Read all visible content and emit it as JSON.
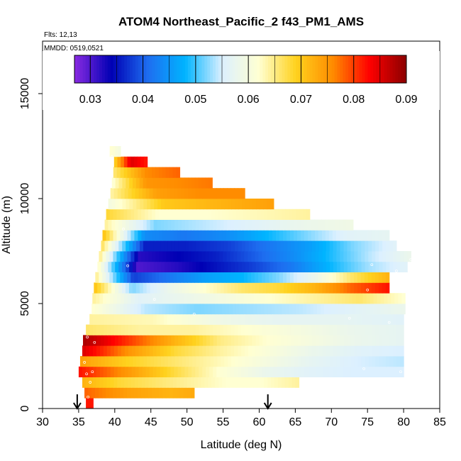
{
  "chart_data": {
    "type": "heatmap",
    "title": "ATOM4 Northeast_Pacific_2 f43_PM1_AMS",
    "flights_note": "Flts: 12,13",
    "date_note": "MMDD: 0519,0521",
    "xlabel": "Latitude (deg N)",
    "ylabel": "Altitude (m)",
    "xlim": [
      30,
      85
    ],
    "ylim": [
      0,
      17500
    ],
    "xticks": [
      "30",
      "35",
      "40",
      "45",
      "50",
      "55",
      "60",
      "65",
      "70",
      "75",
      "80",
      "85"
    ],
    "yticks": [
      "0",
      "5000",
      "10000",
      "15000"
    ],
    "colorbar": {
      "min": 0.027,
      "max": 0.09,
      "ticks": [
        "0.03",
        "0.04",
        "0.05",
        "0.06",
        "0.07",
        "0.08",
        "0.09"
      ],
      "colors": [
        "#8a2be2",
        "#0000b4",
        "#1e6ef0",
        "#00b4ff",
        "#dcf0ff",
        "#ffffd2",
        "#ffd21e",
        "#ff8c00",
        "#ff0000",
        "#8b0000"
      ]
    },
    "layers": [
      {
        "alt": 250,
        "lat_start": 36.0,
        "lat_end": 37.0,
        "values": [
          0.082,
          0.082
        ]
      },
      {
        "alt": 750,
        "lat_start": 35.8,
        "lat_end": 51.0,
        "values": [
          0.078,
          0.076,
          0.074,
          0.073,
          0.072,
          0.073
        ]
      },
      {
        "alt": 1250,
        "lat_start": 35.5,
        "lat_end": 65.5,
        "values": [
          0.072,
          0.068,
          0.066,
          0.064,
          0.062,
          0.062,
          0.064
        ]
      },
      {
        "alt": 1750,
        "lat_start": 35.0,
        "lat_end": 80.0,
        "values": [
          0.082,
          0.075,
          0.068,
          0.062,
          0.058,
          0.056,
          0.055,
          0.055
        ]
      },
      {
        "alt": 2250,
        "lat_start": 35.2,
        "lat_end": 80.0,
        "values": [
          0.074,
          0.069,
          0.066,
          0.063,
          0.06,
          0.057,
          0.055,
          0.054
        ]
      },
      {
        "alt": 2750,
        "lat_start": 35.5,
        "lat_end": 80.0,
        "values": [
          0.085,
          0.075,
          0.068,
          0.064,
          0.061,
          0.058,
          0.056,
          0.055
        ]
      },
      {
        "alt": 3250,
        "lat_start": 35.6,
        "lat_end": 80.0,
        "values": [
          0.088,
          0.08,
          0.072,
          0.065,
          0.062,
          0.06,
          0.058,
          0.057
        ]
      },
      {
        "alt": 3750,
        "lat_start": 36.0,
        "lat_end": 80.0,
        "values": [
          0.066,
          0.064,
          0.064,
          0.062,
          0.06,
          0.058,
          0.057
        ]
      },
      {
        "alt": 4250,
        "lat_start": 36.5,
        "lat_end": 80.0,
        "values": [
          0.064,
          0.063,
          0.059,
          0.057,
          0.057,
          0.056
        ]
      },
      {
        "alt": 4750,
        "lat_start": 36.8,
        "lat_end": 80.2,
        "values": [
          0.062,
          0.054,
          0.052,
          0.053,
          0.054,
          0.056,
          0.058
        ]
      },
      {
        "alt": 5250,
        "lat_start": 36.9,
        "lat_end": 80.2,
        "values": [
          0.064,
          0.056,
          0.058,
          0.06,
          0.062,
          0.064,
          0.066,
          0.062
        ]
      },
      {
        "alt": 5750,
        "lat_start": 37.1,
        "lat_end": 78.0,
        "values": [
          0.07,
          0.052,
          0.058,
          0.062,
          0.066,
          0.068,
          0.072,
          0.078,
          0.082
        ]
      },
      {
        "alt": 6250,
        "lat_start": 37.3,
        "lat_end": 78.0,
        "values": [
          0.064,
          0.038,
          0.042,
          0.046,
          0.048,
          0.052,
          0.058,
          0.066,
          0.072
        ]
      },
      {
        "alt": 6750,
        "lat_start": 37.6,
        "lat_end": 80.5,
        "values": [
          0.062,
          0.03,
          0.032,
          0.035,
          0.038,
          0.042,
          0.048,
          0.053,
          0.056
        ]
      },
      {
        "alt": 7250,
        "lat_start": 37.8,
        "lat_end": 81.0,
        "values": [
          0.064,
          0.032,
          0.034,
          0.036,
          0.04,
          0.044,
          0.049,
          0.054,
          0.058
        ]
      },
      {
        "alt": 7750,
        "lat_start": 38.1,
        "lat_end": 79.0,
        "values": [
          0.066,
          0.036,
          0.036,
          0.038,
          0.042,
          0.046,
          0.052,
          0.056
        ]
      },
      {
        "alt": 8250,
        "lat_start": 38.3,
        "lat_end": 78.0,
        "values": [
          0.07,
          0.044,
          0.042,
          0.044,
          0.048,
          0.052,
          0.056,
          0.057
        ]
      },
      {
        "alt": 8750,
        "lat_start": 38.6,
        "lat_end": 73.0,
        "values": [
          0.064,
          0.052,
          0.054,
          0.056,
          0.058,
          0.059
        ]
      },
      {
        "alt": 9250,
        "lat_start": 38.8,
        "lat_end": 67.0,
        "values": [
          0.068,
          0.062,
          0.062,
          0.063,
          0.064
        ]
      },
      {
        "alt": 9750,
        "lat_start": 39.1,
        "lat_end": 62.0,
        "values": [
          0.06,
          0.07,
          0.072,
          0.074
        ]
      },
      {
        "alt": 10250,
        "lat_start": 39.4,
        "lat_end": 58.0,
        "values": [
          0.064,
          0.074,
          0.076,
          0.076
        ]
      },
      {
        "alt": 10750,
        "lat_start": 39.6,
        "lat_end": 53.5,
        "values": [
          0.062,
          0.075,
          0.076,
          0.077
        ]
      },
      {
        "alt": 11250,
        "lat_start": 39.8,
        "lat_end": 49.0,
        "values": [
          0.066,
          0.076,
          0.078
        ]
      },
      {
        "alt": 11750,
        "lat_start": 39.9,
        "lat_end": 44.5,
        "values": [
          0.07,
          0.085,
          0.082
        ]
      },
      {
        "alt": 12250,
        "lat_start": 39.3,
        "lat_end": 40.8,
        "values": [
          0.062,
          0.06
        ]
      }
    ],
    "track_points": [
      [
        36.3,
        550
      ],
      [
        36.6,
        1250
      ],
      [
        36.1,
        1650
      ],
      [
        35.8,
        2200
      ],
      [
        36.9,
        1750
      ],
      [
        37.2,
        3150
      ],
      [
        36.2,
        3400
      ],
      [
        38.6,
        9800
      ],
      [
        39.6,
        11300
      ],
      [
        39.6,
        12000
      ],
      [
        41.2,
        8550
      ],
      [
        41.8,
        6800
      ],
      [
        45.5,
        5200
      ],
      [
        51.0,
        4500
      ],
      [
        72.5,
        4300
      ],
      [
        75.0,
        5650
      ],
      [
        75.6,
        6850
      ],
      [
        79.0,
        6550
      ],
      [
        81.0,
        7100
      ],
      [
        78.0,
        4100
      ],
      [
        79.6,
        1750
      ],
      [
        74.5,
        1900
      ]
    ],
    "markers": [
      {
        "lat": 34.8,
        "alt": 0
      },
      {
        "lat": 61.2,
        "alt": 0
      }
    ]
  }
}
